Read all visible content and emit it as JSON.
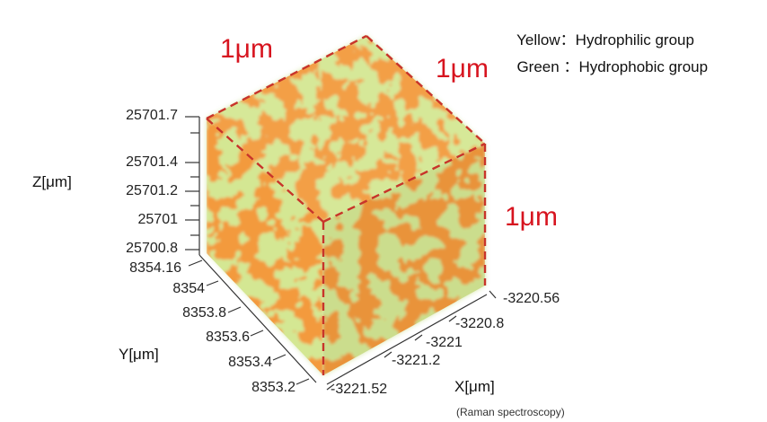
{
  "legend": [
    {
      "label": "Yellow",
      "sep": "：",
      "desc": "Hydrophilic group"
    },
    {
      "label": "Green ",
      "sep": "：",
      "desc": "Hydrophobic group"
    }
  ],
  "dimensions": {
    "top_left": "1μm",
    "top_right": "1μm",
    "right": "1μm"
  },
  "z_axis": {
    "name": "Z[μm]",
    "ticks": [
      "25701.7",
      "25701.4",
      "25701.2",
      "25701",
      "25700.8"
    ]
  },
  "y_axis": {
    "name": "Y[μm]",
    "ticks": [
      "8354.16",
      "8354",
      "8353.8",
      "8353.6",
      "8353.4",
      "8353.2"
    ]
  },
  "x_axis": {
    "name": "X[μm]",
    "ticks": [
      "-3220.56",
      "-3220.8",
      "-3221",
      "-3221.2",
      "-3221.52"
    ]
  },
  "note": "(Raman spectroscopy)",
  "colors": {
    "orange": "#f39a3c",
    "green": "#a8cc4a",
    "dashed_edge": "#c8342a",
    "dimension_text": "#d7141f"
  }
}
